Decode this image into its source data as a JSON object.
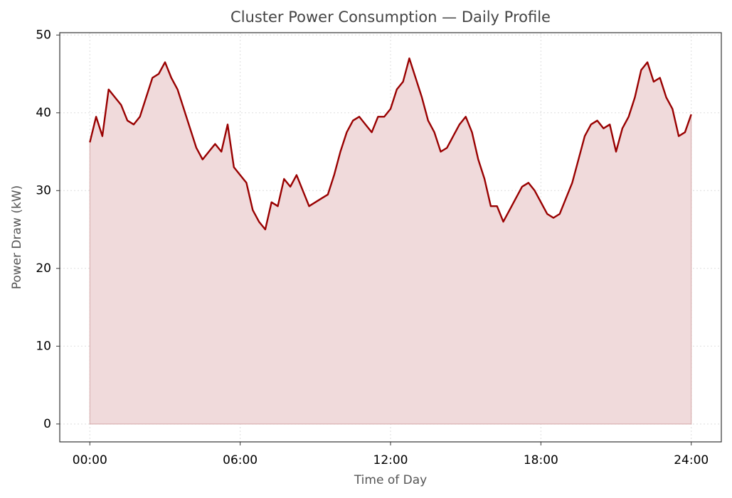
{
  "chart_data": {
    "type": "area",
    "title": "Cluster Power Consumption — Daily Profile",
    "x_label": "Time of Day",
    "y_label": "Power Draw (kW)",
    "x": [
      0,
      0.25,
      0.5,
      0.75,
      1,
      1.25,
      1.5,
      1.75,
      2,
      2.25,
      2.5,
      2.75,
      3,
      3.25,
      3.5,
      3.75,
      4,
      4.25,
      4.5,
      4.75,
      5,
      5.25,
      5.5,
      5.75,
      6,
      6.25,
      6.5,
      6.75,
      7,
      7.25,
      7.5,
      7.75,
      8,
      8.25,
      8.5,
      8.75,
      9,
      9.25,
      9.5,
      9.75,
      10,
      10.25,
      10.5,
      10.75,
      11,
      11.25,
      11.5,
      11.75,
      12,
      12.25,
      12.5,
      12.75,
      13,
      13.25,
      13.5,
      13.75,
      14,
      14.25,
      14.5,
      14.75,
      15,
      15.25,
      15.5,
      15.75,
      16,
      16.25,
      16.5,
      16.75,
      17,
      17.25,
      17.5,
      17.75,
      18,
      18.25,
      18.5,
      18.75,
      19,
      19.25,
      19.5,
      19.75,
      20,
      20.25,
      20.5,
      20.75,
      21,
      21.25,
      21.5,
      21.75,
      22,
      22.25,
      22.5,
      22.75,
      23,
      23.25,
      23.5,
      23.75,
      24
    ],
    "series": [
      {
        "name": "Power Draw",
        "color": "#990000",
        "fill": "#f0dadb",
        "values": [
          36.2,
          39.5,
          37,
          43,
          42,
          41,
          39,
          38.5,
          39.5,
          42,
          44.5,
          45,
          46.5,
          44.5,
          43,
          40.5,
          38,
          35.5,
          34,
          35,
          36,
          35,
          38.5,
          33,
          32,
          31,
          27.5,
          26,
          25,
          28.5,
          28,
          31.5,
          30.5,
          32,
          30,
          28,
          28.5,
          29,
          29.5,
          32,
          35,
          37.5,
          39,
          39.5,
          38.5,
          37.5,
          39.5,
          39.5,
          40.5,
          43,
          44,
          47,
          44.5,
          42,
          39,
          37.5,
          35,
          35.5,
          37,
          38.5,
          39.5,
          37.5,
          34,
          31.5,
          28,
          28,
          26,
          27.5,
          29,
          30.5,
          31,
          30,
          28.5,
          27,
          26.5,
          27,
          29,
          31,
          34,
          37,
          38.5,
          39,
          38,
          38.5,
          35,
          38,
          39.5,
          42,
          45.5,
          46.5,
          44,
          44.5,
          42,
          40.5,
          37,
          37.5,
          39.8
        ]
      }
    ],
    "xlim": [
      -1.2,
      25.2
    ],
    "ylim": [
      -2.3,
      50.3
    ],
    "xticks": [
      {
        "value": 0,
        "label": "00:00"
      },
      {
        "value": 6,
        "label": "06:00"
      },
      {
        "value": 12,
        "label": "12:00"
      },
      {
        "value": 18,
        "label": "18:00"
      },
      {
        "value": 24,
        "label": "24:00"
      }
    ],
    "yticks": [
      0,
      10,
      20,
      30,
      40,
      50
    ],
    "grid": true
  }
}
